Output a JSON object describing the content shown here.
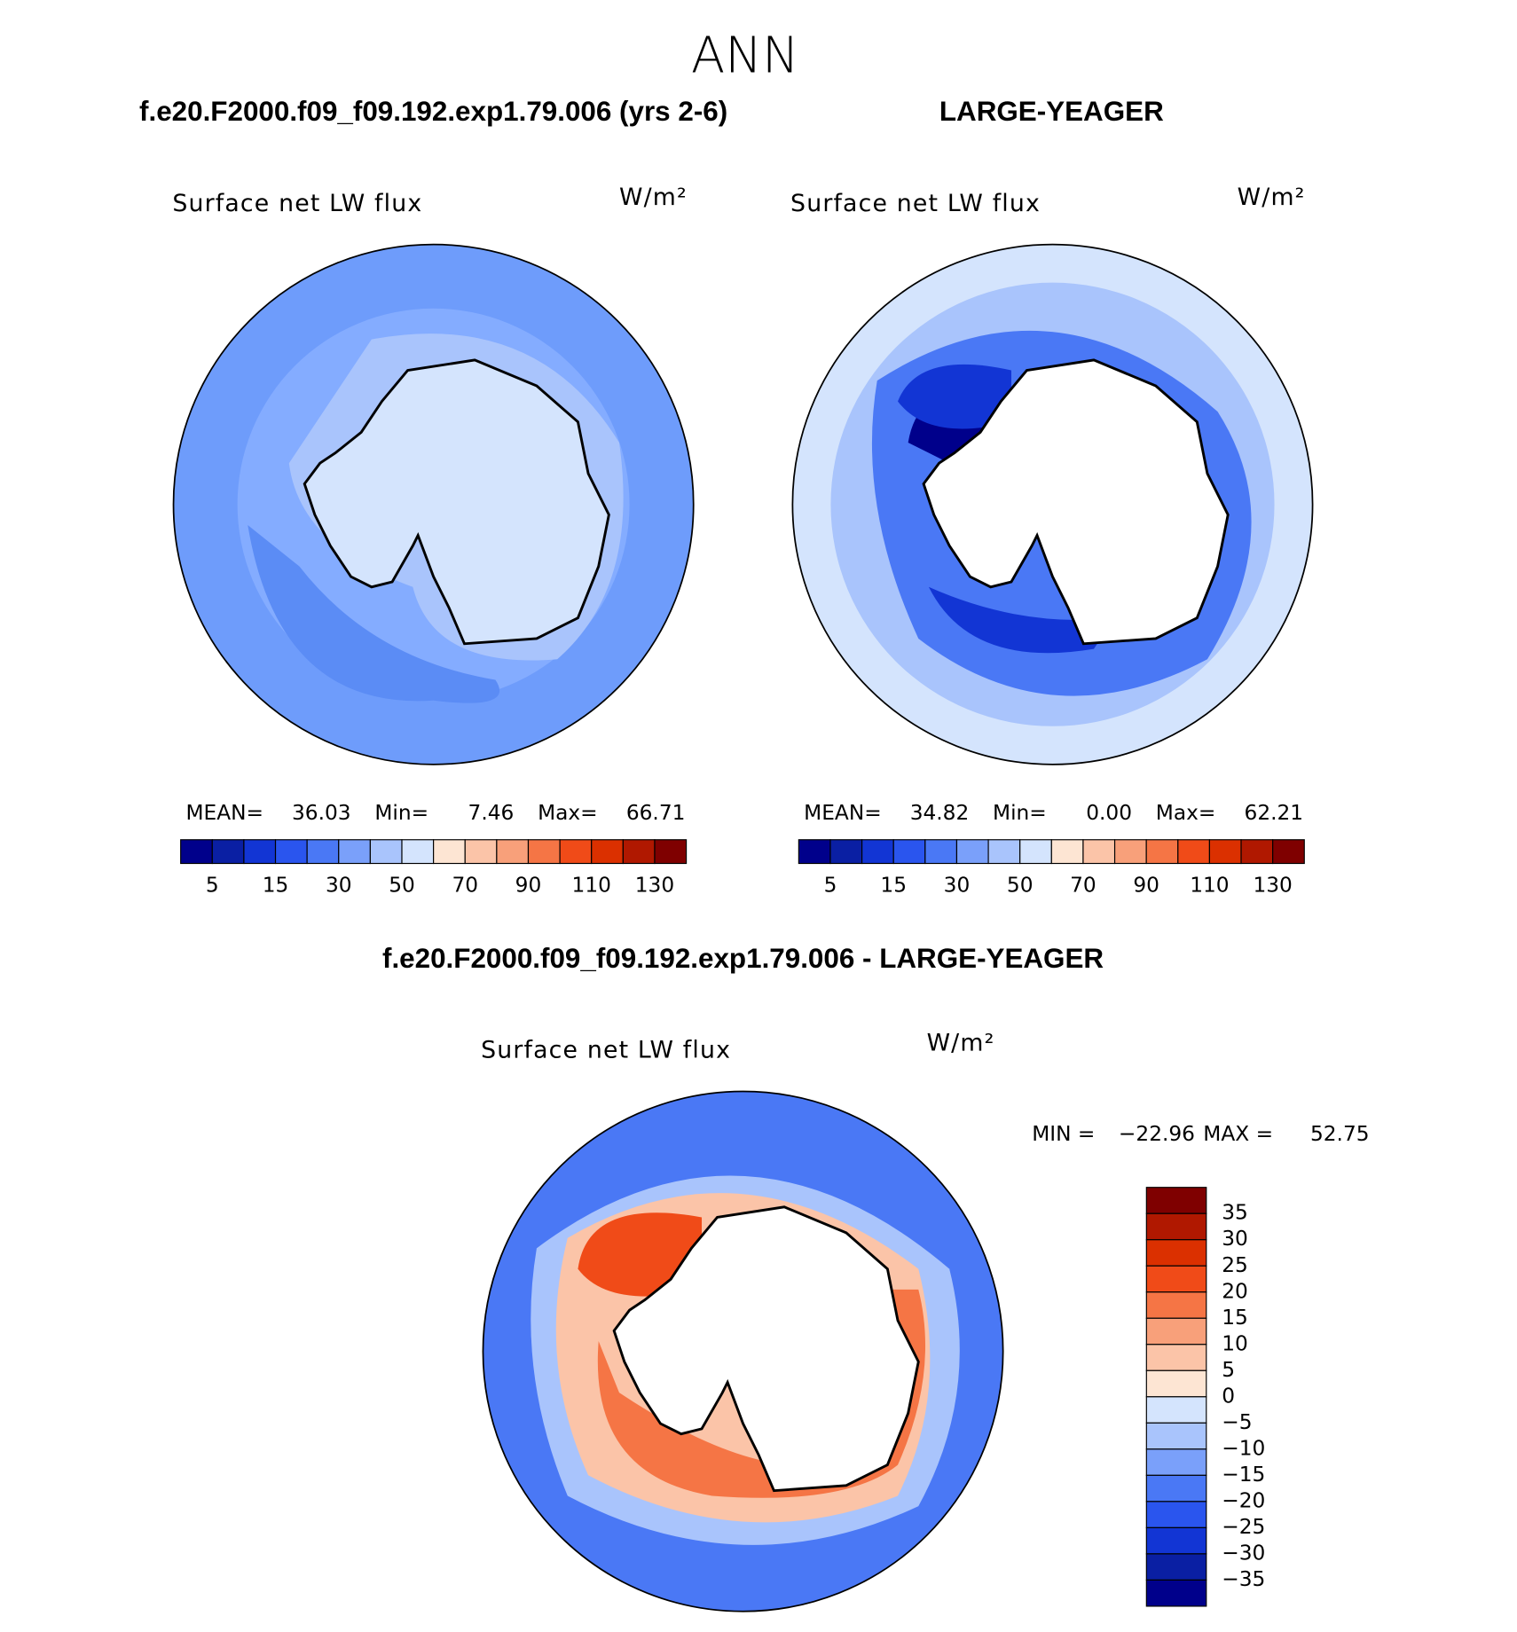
{
  "title": "ANN",
  "colorbar_colors": [
    "#00008b",
    "#0a1fa3",
    "#1235d4",
    "#2a55ee",
    "#4a78f5",
    "#7aa0fa",
    "#a9c4fc",
    "#d4e4fd",
    "#fde5d3",
    "#fbc4a8",
    "#f8a07a",
    "#f57545",
    "#f04b18",
    "#db3000",
    "#b01800",
    "#7f0000"
  ],
  "panels": [
    {
      "heading": "f.e20.F2000.f09_f09.192.exp1.79.006 (yrs 2-6)",
      "field": "Surface net LW flux",
      "units": "W/m²",
      "stats": [
        {
          "label": "MEAN=",
          "value": "36.03"
        },
        {
          "label": "Min=",
          "value": "7.46"
        },
        {
          "label": "Max=",
          "value": "66.71"
        }
      ],
      "colorbar_labels": [
        "5",
        "15",
        "30",
        "50",
        "70",
        "90",
        "110",
        "130"
      ]
    },
    {
      "heading": "LARGE-YEAGER",
      "field": "Surface net LW flux",
      "units": "W/m²",
      "stats": [
        {
          "label": "MEAN=",
          "value": "34.82"
        },
        {
          "label": "Min=",
          "value": "0.00"
        },
        {
          "label": "Max=",
          "value": "62.21"
        }
      ],
      "colorbar_labels": [
        "5",
        "15",
        "30",
        "50",
        "70",
        "90",
        "110",
        "130"
      ]
    }
  ],
  "difference": {
    "heading": "f.e20.F2000.f09_f09.192.exp1.79.006 - LARGE-YEAGER",
    "field": "Surface net LW flux",
    "units": "W/m²",
    "stats": [
      {
        "label": "MIN =",
        "value": "−22.96"
      },
      {
        "label": "MAX =",
        "value": "52.75"
      }
    ],
    "colorbar_labels": [
      "35",
      "30",
      "25",
      "20",
      "15",
      "10",
      "5",
      "0",
      "−5",
      "−10",
      "−15",
      "−20",
      "−25",
      "−30",
      "−35"
    ]
  }
}
